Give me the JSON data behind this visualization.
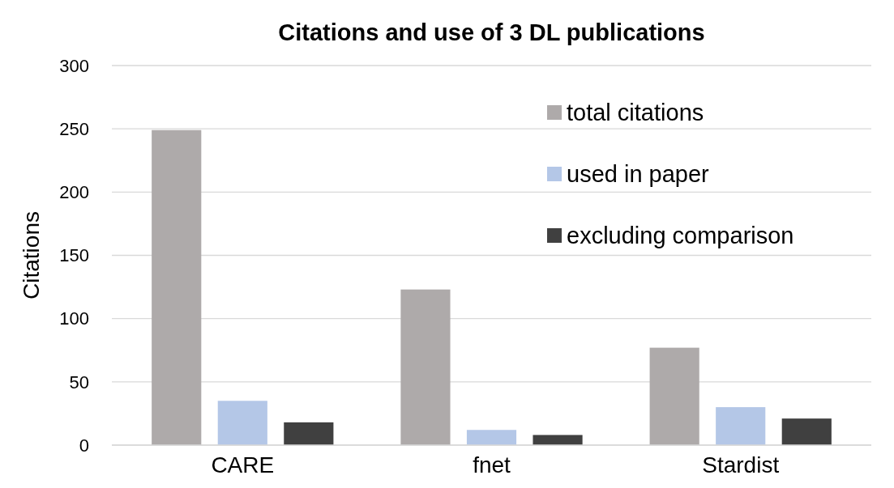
{
  "chart_data": {
    "type": "bar",
    "title": "Citations and use of 3 DL publications",
    "ylabel": "Citations",
    "categories": [
      "CARE",
      "fnet",
      "Stardist"
    ],
    "series": [
      {
        "name": "total citations",
        "color": "#aeaaaa",
        "values": [
          249,
          123,
          77
        ]
      },
      {
        "name": "used in paper",
        "color": "#b4c7e7",
        "values": [
          35,
          12,
          30
        ]
      },
      {
        "name": "excluding comparison",
        "color": "#404040",
        "values": [
          18,
          8,
          21
        ]
      }
    ],
    "ylim": [
      0,
      300
    ],
    "yticks": [
      0,
      50,
      100,
      150,
      200,
      250,
      300
    ],
    "grid": "y",
    "legend": "top right"
  }
}
